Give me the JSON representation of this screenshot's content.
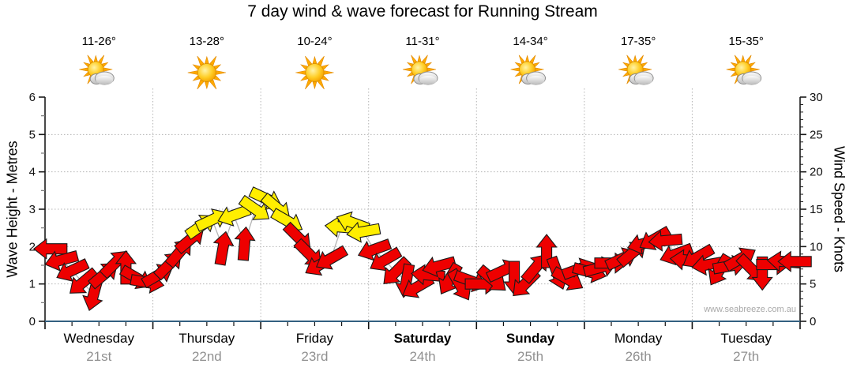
{
  "title": "7 day wind & wave forecast for Running Stream",
  "watermark": "www.seabreeze.com.au",
  "axes": {
    "left_label": "Wave Height - Metres",
    "right_label": "Wind Speed - Knots"
  },
  "colors": {
    "arrow_red": "#ee0000",
    "arrow_yellow": "#ffee00",
    "arrow_outline": "#1a1a1a",
    "axis_black": "#1a1a1a",
    "axis_bottom_blue": "#336080",
    "grid_dotted": "#b4b4b4",
    "date_gray": "#909090",
    "connector_gray": "#b5b5b5",
    "watermark_gray": "#a8a8a8"
  },
  "chart_data": {
    "type": "scatter",
    "subtype": "wind-arrow-forecast-timeseries",
    "title": "7 day wind & wave forecast for Running Stream",
    "y_axis_left": {
      "label": "Wave Height - Metres",
      "min": 0,
      "max": 6,
      "major_step": 1,
      "minor_step": 0.5
    },
    "y_axis_right": {
      "label": "Wind Speed - Knots",
      "min": 0,
      "max": 30,
      "major_step": 5,
      "minor_step": 1
    },
    "grid": {
      "horizontal_lines_metres": [
        1,
        2,
        3,
        4,
        5
      ],
      "vertical_lines": "day-boundaries",
      "style": "dotted"
    },
    "x_minor_ticks_per_day": 4,
    "days": [
      {
        "name": "Wednesday",
        "date": "21st",
        "temp": "11-26°",
        "icon": "sun-cloud",
        "weekend": false
      },
      {
        "name": "Thursday",
        "date": "22nd",
        "temp": "13-28°",
        "icon": "sun",
        "weekend": false
      },
      {
        "name": "Friday",
        "date": "23rd",
        "temp": "10-24°",
        "icon": "sun",
        "weekend": false
      },
      {
        "name": "Saturday",
        "date": "24th",
        "temp": "11-31°",
        "icon": "sun-cloud",
        "weekend": true
      },
      {
        "name": "Sunday",
        "date": "25th",
        "temp": "14-34°",
        "icon": "sun-cloud",
        "weekend": true
      },
      {
        "name": "Monday",
        "date": "26th",
        "temp": "17-35°",
        "icon": "sun-cloud",
        "weekend": false
      },
      {
        "name": "Tuesday",
        "date": "27th",
        "temp": "15-35°",
        "icon": "sun-cloud",
        "weekend": false
      }
    ],
    "arrows_format": [
      "wind_speed_knots",
      "arrow_direction_deg_screen_0_is_right",
      "color"
    ],
    "arrows": [
      [
        9.7,
        180,
        "red"
      ],
      [
        8.2,
        165,
        "red"
      ],
      [
        6.8,
        155,
        "red"
      ],
      [
        5.2,
        140,
        "red"
      ],
      [
        3.6,
        105,
        "red"
      ],
      [
        6.3,
        -40,
        "red"
      ],
      [
        7.8,
        -45,
        "red"
      ],
      [
        7.2,
        -90,
        "red"
      ],
      [
        5.8,
        30,
        "red"
      ],
      [
        5.2,
        10,
        "red"
      ],
      [
        6.2,
        -30,
        "red"
      ],
      [
        7.6,
        -45,
        "red"
      ],
      [
        9.3,
        -50,
        "red"
      ],
      [
        11.0,
        -40,
        "red"
      ],
      [
        12.8,
        -35,
        "yellow"
      ],
      [
        13.6,
        -25,
        "yellow"
      ],
      [
        9.8,
        -80,
        "red"
      ],
      [
        14.2,
        160,
        "yellow"
      ],
      [
        10.4,
        -85,
        "red"
      ],
      [
        15.0,
        35,
        "yellow"
      ],
      [
        16.4,
        25,
        "yellow"
      ],
      [
        15.2,
        40,
        "yellow"
      ],
      [
        13.4,
        30,
        "yellow"
      ],
      [
        11.2,
        45,
        "red"
      ],
      [
        9.0,
        45,
        "red"
      ],
      [
        7.6,
        150,
        "red"
      ],
      [
        8.4,
        150,
        "red"
      ],
      [
        12.6,
        185,
        "yellow"
      ],
      [
        13.2,
        200,
        "yellow"
      ],
      [
        12.0,
        170,
        "yellow"
      ],
      [
        9.6,
        160,
        "red"
      ],
      [
        8.2,
        150,
        "red"
      ],
      [
        6.6,
        135,
        "red"
      ],
      [
        5.4,
        100,
        "red"
      ],
      [
        4.6,
        150,
        "red"
      ],
      [
        6.2,
        185,
        "red"
      ],
      [
        7.4,
        165,
        "red"
      ],
      [
        5.6,
        120,
        "red"
      ],
      [
        4.8,
        60,
        "red"
      ],
      [
        5.4,
        20,
        "red"
      ],
      [
        5.0,
        0,
        "red"
      ],
      [
        5.6,
        40,
        "red"
      ],
      [
        6.8,
        -25,
        "red"
      ],
      [
        5.8,
        90,
        "red"
      ],
      [
        5.0,
        135,
        "red"
      ],
      [
        7.2,
        -50,
        "red"
      ],
      [
        9.4,
        -90,
        "red"
      ],
      [
        6.4,
        70,
        "red"
      ],
      [
        5.6,
        30,
        "red"
      ],
      [
        7.0,
        -20,
        "red"
      ],
      [
        6.6,
        15,
        "red"
      ],
      [
        7.2,
        -15,
        "red"
      ],
      [
        7.8,
        0,
        "red"
      ],
      [
        8.4,
        -25,
        "red"
      ],
      [
        9.2,
        -40,
        "red"
      ],
      [
        10.4,
        165,
        "red"
      ],
      [
        11.0,
        150,
        "red"
      ],
      [
        10.8,
        175,
        "red"
      ],
      [
        9.0,
        160,
        "red"
      ],
      [
        8.2,
        185,
        "red"
      ],
      [
        8.6,
        150,
        "red"
      ],
      [
        7.6,
        170,
        "red"
      ],
      [
        6.8,
        120,
        "red"
      ],
      [
        7.4,
        -10,
        "red"
      ],
      [
        8.4,
        -30,
        "red"
      ],
      [
        7.0,
        45,
        "red"
      ],
      [
        6.4,
        90,
        "red"
      ],
      [
        7.6,
        0,
        "red"
      ],
      [
        8.0,
        185,
        "red"
      ],
      [
        8.0,
        180,
        "red"
      ]
    ]
  }
}
